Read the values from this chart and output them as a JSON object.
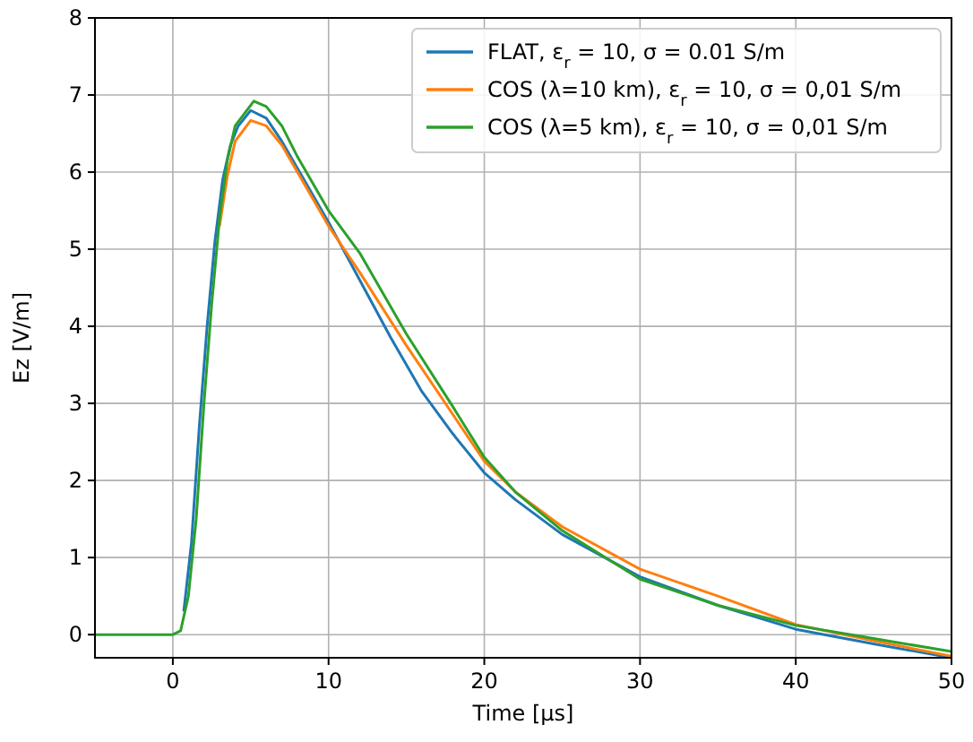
{
  "chart_data": {
    "type": "line",
    "xlabel": "Time [µs]",
    "ylabel": "Ez [V/m]",
    "xlim": [
      -5,
      50
    ],
    "ylim": [
      -0.3,
      8
    ],
    "xticks": [
      0,
      10,
      20,
      30,
      40,
      50
    ],
    "yticks": [
      0,
      1,
      2,
      3,
      4,
      5,
      6,
      7,
      8
    ],
    "grid": true,
    "legend": "top right",
    "series": [
      {
        "name": "FLAT, ε$_{r}$ = 10, σ = 0.01 S/m",
        "color": "#1f77b4",
        "x": [
          0.7,
          1.2,
          1.7,
          2.2,
          2.7,
          3.2,
          3.7,
          4.2,
          5,
          6,
          7,
          8,
          10,
          12,
          14,
          16,
          18,
          20,
          22,
          25,
          30,
          35,
          40,
          45,
          50
        ],
        "values": [
          0.3,
          1.2,
          2.7,
          4.0,
          5.1,
          5.9,
          6.35,
          6.6,
          6.8,
          6.7,
          6.4,
          6.05,
          5.35,
          4.6,
          3.85,
          3.15,
          2.6,
          2.1,
          1.75,
          1.3,
          0.75,
          0.38,
          0.07,
          -0.12,
          -0.3
        ]
      },
      {
        "name": "COS (λ=10 km), ε$_{r}$ = 10, σ = 0,01 S/m",
        "color": "#ff7f0e",
        "x": [
          3,
          3.5,
          4,
          5,
          6,
          7,
          8,
          10,
          12,
          15,
          18,
          20,
          22,
          25,
          30,
          35,
          40,
          45,
          50
        ],
        "values": [
          5.3,
          5.95,
          6.4,
          6.67,
          6.6,
          6.35,
          6.0,
          5.3,
          4.7,
          3.75,
          2.85,
          2.25,
          1.85,
          1.4,
          0.85,
          0.5,
          0.13,
          -0.08,
          -0.28
        ]
      },
      {
        "name": "COS (λ=5 km), ε$_{r}$ = 10, σ = 0,01 S/m",
        "color": "#2ca02c",
        "x": [
          -5,
          0,
          0.5,
          1,
          1.5,
          2,
          2.5,
          3,
          3.5,
          4,
          5.2,
          6,
          7,
          8,
          10,
          12,
          15,
          18,
          20,
          22,
          25,
          30,
          35,
          40,
          45,
          50
        ],
        "values": [
          0,
          0,
          0.05,
          0.5,
          1.5,
          3.0,
          4.3,
          5.4,
          6.15,
          6.6,
          6.92,
          6.85,
          6.6,
          6.2,
          5.5,
          4.95,
          3.9,
          2.95,
          2.3,
          1.85,
          1.35,
          0.72,
          0.38,
          0.12,
          -0.05,
          -0.22
        ]
      }
    ]
  }
}
